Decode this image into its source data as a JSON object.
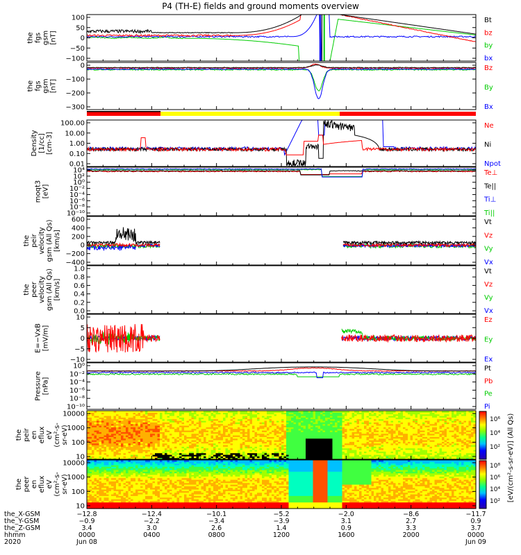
{
  "title": "P4 (TH-E) fields and ground moments overview",
  "colors": {
    "black": "#000000",
    "red": "#ff0000",
    "green": "#00cc00",
    "blue": "#0000ff",
    "yellow": "#ffff00"
  },
  "chart_data": [
    {
      "type": "line",
      "panel": "fgs_gsm",
      "ylabel": [
        "the",
        "fgs",
        "gsm",
        "[nT]"
      ],
      "ylim": [
        -100,
        100
      ],
      "yticks": [
        "100",
        "50",
        "0",
        "−50",
        "−100"
      ],
      "series": [
        {
          "name": "Bt",
          "color": "#000000",
          "trend": "20-35 nT, rising toward 100 near 11:00-13:00, drop to 0 at 14:00, 100 until ~16:00, decreasing to 15 by 24:00"
        },
        {
          "name": "bz",
          "color": "#ff0000",
          "trend": "near 10 nT, spikes near 14:00"
        },
        {
          "name": "by",
          "color": "#00cc00",
          "trend": "near 0 decreasing to -100 near 13:00, recovering after 15:30"
        },
        {
          "name": "bx",
          "color": "#0000ff",
          "trend": "near 5 nT, saturated near 14:00"
        }
      ]
    },
    {
      "type": "line",
      "panel": "fgs_gsm_zoom",
      "ylabel": [
        "the",
        "fgs",
        "gsm",
        "[nT]"
      ],
      "ylim": [
        -330,
        50
      ],
      "yticks": [
        "0",
        "−100",
        "−200",
        "−300"
      ],
      "series": [
        {
          "name": "Bz",
          "color": "#ff0000"
        },
        {
          "name": "By",
          "color": "#00cc00"
        },
        {
          "name": "Bx",
          "color": "#0000ff"
        }
      ]
    },
    {
      "type": "line",
      "panel": "density",
      "ylabel": [
        "Density",
        "[1/cc]",
        "[cm-3]"
      ],
      "ylog": true,
      "ylim": [
        0.01,
        100
      ],
      "yticks": [
        "100.00",
        "10.00",
        "1.00",
        "0.10",
        "0.01"
      ],
      "series": [
        {
          "name": "Ne",
          "color": "#ff0000"
        },
        {
          "name": "Ni",
          "color": "#000000"
        },
        {
          "name": "Npot",
          "color": "#0000ff"
        }
      ]
    },
    {
      "type": "line",
      "panel": "temperature",
      "ylabel": [
        "moqt3",
        "[eV]"
      ],
      "ylog": true,
      "yticks": [
        "10⁴",
        "10²",
        "10⁰",
        "10⁻²",
        "10⁻⁴",
        "10⁻⁶",
        "10⁻⁸",
        "10⁻¹⁰"
      ],
      "series": [
        {
          "name": "Te⊥",
          "color": "#ff0000"
        },
        {
          "name": "Te||",
          "color": "#000000"
        },
        {
          "name": "Ti⊥",
          "color": "#0000ff"
        },
        {
          "name": "Ti||",
          "color": "#00cc00"
        }
      ]
    },
    {
      "type": "line",
      "panel": "peir_velocity",
      "ylabel": [
        "the",
        "peir",
        "velocity",
        "gsm (All Qs)",
        "[km/s]"
      ],
      "ylim": [
        -400,
        600
      ],
      "yticks": [
        "600",
        "400",
        "200",
        "0",
        "−200",
        "−400"
      ],
      "series": [
        {
          "name": "Vt",
          "color": "#000000"
        },
        {
          "name": "Vz",
          "color": "#ff0000"
        },
        {
          "name": "Vy",
          "color": "#00cc00"
        },
        {
          "name": "Vx",
          "color": "#0000ff"
        }
      ]
    },
    {
      "type": "line",
      "panel": "peer_velocity",
      "ylabel": [
        "the",
        "peer",
        "velocity",
        "gsm (All Qs)",
        "[km/s]"
      ],
      "ylim": [
        0.0,
        1.0
      ],
      "yticks": [
        "1.0",
        "0.8",
        "0.6",
        "0.4",
        "0.2",
        "0.0"
      ],
      "series": [
        {
          "name": "Vt",
          "color": "#000000"
        },
        {
          "name": "Vz",
          "color": "#ff0000"
        },
        {
          "name": "Vy",
          "color": "#00cc00"
        },
        {
          "name": "Vx",
          "color": "#0000ff"
        }
      ]
    },
    {
      "type": "line",
      "panel": "efield",
      "ylabel": [
        "E=−VxB",
        "[mV/m]"
      ],
      "ylim": [
        -10,
        10
      ],
      "yticks": [
        "10",
        "5",
        "0",
        "−5",
        "−10"
      ],
      "series": [
        {
          "name": "Ez",
          "color": "#ff0000"
        },
        {
          "name": "Ey",
          "color": "#00cc00"
        },
        {
          "name": "Ex",
          "color": "#0000ff"
        }
      ]
    },
    {
      "type": "line",
      "panel": "pressure",
      "ylabel": [
        "Pressure",
        "[nPa]"
      ],
      "ylog": true,
      "yticks": [
        "10⁰",
        "10⁻²",
        "10⁻⁴",
        "10⁻⁶",
        "10⁻⁸",
        "10⁻¹⁰"
      ],
      "series": [
        {
          "name": "Pt",
          "color": "#000000"
        },
        {
          "name": "Pb",
          "color": "#ff0000"
        },
        {
          "name": "Pe",
          "color": "#00cc00"
        },
        {
          "name": "Pi",
          "color": "#0000ff"
        }
      ]
    },
    {
      "type": "heatmap",
      "panel": "peir_eflux",
      "ylabel": [
        "the",
        "peir",
        "en",
        "eflux",
        "eV",
        "(cm²-s-",
        "sr-eV)"
      ],
      "ylog": true,
      "yticks": [
        "10000",
        "1000",
        "100",
        "10"
      ]
    },
    {
      "type": "heatmap",
      "panel": "peer_eflux",
      "ylabel": [
        "the",
        "peer",
        "en",
        "eflux",
        "eV",
        "(cm²-s-",
        "sr-eV)"
      ],
      "ylog": true,
      "yticks": [
        "10000",
        "1000",
        "100",
        "10"
      ]
    }
  ],
  "colorbar": {
    "label": "[eV/(cm²-s-sr-eV)] (All Qs)",
    "ticks_upper": [
      "10⁶",
      "10⁴",
      "10²"
    ],
    "ticks_lower": [
      "10⁸",
      "10⁶",
      "10⁴",
      "10²"
    ]
  },
  "x_axis": {
    "rows": [
      {
        "label": "the_X-GSM",
        "values": [
          "−12.8",
          "−12.4",
          "−10.1",
          "−5.2",
          "−2.0",
          "−8.6",
          "−11.7"
        ]
      },
      {
        "label": "the_Y-GSM",
        "values": [
          "−0.9",
          "−2.2",
          "−3.4",
          "−3.9",
          "3.1",
          "2.7",
          "0.9"
        ]
      },
      {
        "label": "the_Z-GSM",
        "values": [
          "3.4",
          "3.0",
          "2.6",
          "1.4",
          "0.9",
          "3.3",
          "3.7"
        ]
      },
      {
        "label": "hhmm",
        "values": [
          "0000",
          "0400",
          "0800",
          "1200",
          "1600",
          "2000",
          "0000"
        ]
      },
      {
        "label": "2020",
        "values": [
          "Jun 08",
          "",
          "",
          "",
          "",
          "",
          "Jun 09"
        ]
      }
    ]
  }
}
